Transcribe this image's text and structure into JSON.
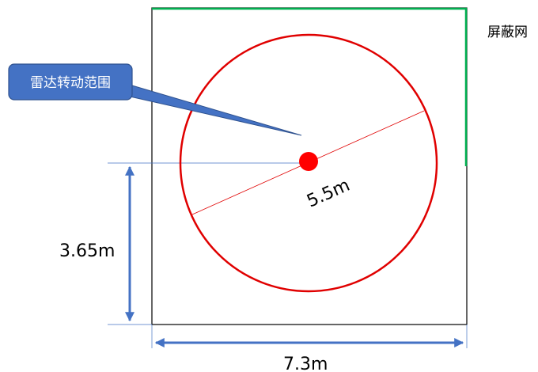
{
  "callout": {
    "label": "雷达转动范围",
    "fill": "#4472c4",
    "stroke": "#2f528f",
    "text_color": "#ffffff"
  },
  "shield": {
    "label": "屏蔽网",
    "color": "#00b050"
  },
  "radar": {
    "diameter_label": "5.5m",
    "circle_color": "#e00000",
    "center_color": "#ff0000"
  },
  "dimensions": {
    "width_label": "7.3m",
    "height_label": "3.65m",
    "arrow_color": "#4472c4"
  },
  "room": {
    "border_color": "#000000"
  }
}
